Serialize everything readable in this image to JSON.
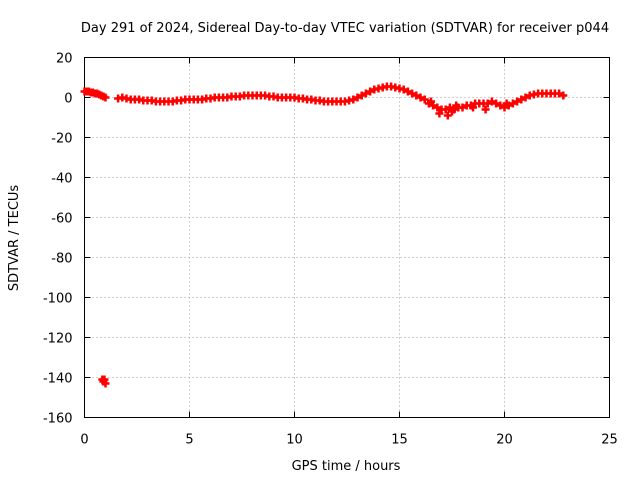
{
  "chart_data": {
    "type": "scatter",
    "title": "Day 291 of 2024, Sidereal Day-to-day VTEC variation (SDTVAR) for receiver p044",
    "xlabel": "GPS time / hours",
    "ylabel": "SDTVAR / TECUs",
    "xlim": [
      0,
      25
    ],
    "ylim": [
      -160,
      20
    ],
    "xticks": [
      0,
      5,
      10,
      15,
      20,
      25
    ],
    "yticks": [
      20,
      0,
      -20,
      -40,
      -60,
      -80,
      -100,
      -120,
      -140,
      -160
    ],
    "grid": true,
    "marker": "plus",
    "color": "#ff0000",
    "series": [
      {
        "name": "SDTVAR",
        "x": [
          0.0,
          0.1,
          0.2,
          0.3,
          0.4,
          0.5,
          0.6,
          0.7,
          0.8,
          0.9,
          1.0,
          0.85,
          0.9,
          0.95,
          1.0,
          1.6,
          1.8,
          2.0,
          2.2,
          2.4,
          2.6,
          2.8,
          3.0,
          3.2,
          3.4,
          3.6,
          3.8,
          4.0,
          4.2,
          4.4,
          4.6,
          4.8,
          5.0,
          5.2,
          5.4,
          5.6,
          5.8,
          6.0,
          6.2,
          6.4,
          6.6,
          6.8,
          7.0,
          7.2,
          7.4,
          7.6,
          7.8,
          8.0,
          8.2,
          8.4,
          8.6,
          8.8,
          9.0,
          9.2,
          9.4,
          9.6,
          9.8,
          10.0,
          10.2,
          10.4,
          10.6,
          10.8,
          11.0,
          11.2,
          11.4,
          11.6,
          11.8,
          12.0,
          12.2,
          12.4,
          12.6,
          12.8,
          13.0,
          13.2,
          13.4,
          13.6,
          13.8,
          14.0,
          14.2,
          14.4,
          14.6,
          14.8,
          15.0,
          15.2,
          15.4,
          15.6,
          15.8,
          16.0,
          16.2,
          16.4,
          16.6,
          16.8,
          17.0,
          17.2,
          17.4,
          17.6,
          17.8,
          18.0,
          18.2,
          18.4,
          18.6,
          18.8,
          19.0,
          19.2,
          19.4,
          19.6,
          19.8,
          20.0,
          20.2,
          20.4,
          20.6,
          20.8,
          21.0,
          21.2,
          21.4,
          21.6,
          21.8,
          22.0,
          22.2,
          22.4,
          22.6,
          22.8,
          16.9,
          17.3,
          17.7,
          18.5,
          19.1,
          20.1,
          16.5,
          17.5
        ],
        "y": [
          3,
          3,
          3,
          2.5,
          2.5,
          2,
          2,
          1.5,
          1,
          0.5,
          0,
          -141,
          -142,
          -141,
          -143,
          -0.5,
          0,
          -0.5,
          -1,
          -1,
          -1,
          -1.5,
          -1.5,
          -1.5,
          -2,
          -2,
          -2,
          -2,
          -2,
          -1.5,
          -1.5,
          -1,
          -1,
          -1,
          -1,
          -1,
          -0.5,
          -0.5,
          0,
          0,
          0,
          0,
          0.5,
          0.5,
          0.5,
          1,
          1,
          1,
          1,
          1,
          1,
          0.5,
          0.5,
          0,
          0,
          0,
          0,
          0,
          -0.5,
          -0.5,
          -1,
          -1,
          -1.5,
          -1.5,
          -2,
          -2,
          -2,
          -2,
          -2,
          -2,
          -1.5,
          -1,
          0,
          1,
          2,
          3,
          4,
          4.5,
          5,
          5.5,
          5.5,
          5,
          4.5,
          4,
          3,
          2,
          1,
          0,
          -1,
          -3,
          -4,
          -5,
          -6,
          -6,
          -5,
          -6,
          -5,
          -5,
          -4,
          -4,
          -3,
          -3,
          -3,
          -3,
          -2,
          -3,
          -4,
          -5,
          -4,
          -3,
          -2,
          -1,
          0,
          1,
          1.5,
          2,
          2,
          2,
          2,
          2,
          2,
          1,
          -8,
          -9,
          -4,
          -5,
          -6,
          -3,
          -2,
          -7
        ]
      }
    ]
  }
}
